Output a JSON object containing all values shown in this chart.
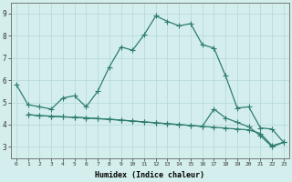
{
  "xlabel": "Humidex (Indice chaleur)",
  "background_color": "#d4eeee",
  "grid_color": "#b8dada",
  "line_color": "#2e7d6e",
  "ylim": [
    2.5,
    9.5
  ],
  "xlim": [
    -0.5,
    23.5
  ],
  "yticks": [
    3,
    4,
    5,
    6,
    7,
    8,
    9
  ],
  "xticks": [
    0,
    1,
    2,
    3,
    4,
    5,
    6,
    7,
    8,
    9,
    10,
    11,
    12,
    13,
    14,
    15,
    16,
    17,
    18,
    19,
    20,
    21,
    22,
    23
  ],
  "s1_x": [
    0,
    1,
    2,
    3,
    4,
    5,
    6,
    7,
    8,
    9,
    10,
    11,
    12,
    13,
    14,
    15,
    16,
    17,
    18,
    19,
    20,
    21,
    22,
    23
  ],
  "s1_y": [
    5.8,
    4.9,
    4.8,
    4.7,
    5.2,
    5.3,
    4.8,
    5.5,
    6.6,
    7.5,
    7.35,
    8.05,
    8.9,
    8.65,
    8.45,
    8.55,
    7.6,
    7.45,
    6.2,
    4.75,
    4.8,
    3.85,
    3.8,
    3.2
  ],
  "s2_x": [
    1,
    2,
    3,
    4,
    5,
    6,
    7,
    8,
    9,
    10,
    11,
    12,
    13,
    14,
    15,
    16,
    17,
    18,
    19,
    20,
    21,
    22,
    23
  ],
  "s2_y": [
    4.45,
    4.4,
    4.38,
    4.35,
    4.33,
    4.3,
    4.27,
    4.24,
    4.2,
    4.16,
    4.12,
    4.08,
    4.04,
    4.0,
    3.96,
    3.92,
    3.88,
    3.84,
    3.8,
    3.76,
    3.6,
    3.05,
    3.2
  ],
  "s3_x": [
    1,
    2,
    3,
    4,
    5,
    6,
    7,
    8,
    9,
    10,
    11,
    12,
    13,
    14,
    15,
    16,
    17,
    18,
    19,
    20,
    21,
    22,
    23
  ],
  "s3_y": [
    4.45,
    4.4,
    4.38,
    4.35,
    4.33,
    4.3,
    4.27,
    4.24,
    4.2,
    4.16,
    4.12,
    4.08,
    4.04,
    4.0,
    3.96,
    3.92,
    4.7,
    4.3,
    4.1,
    3.9,
    3.5,
    3.0,
    3.2
  ]
}
